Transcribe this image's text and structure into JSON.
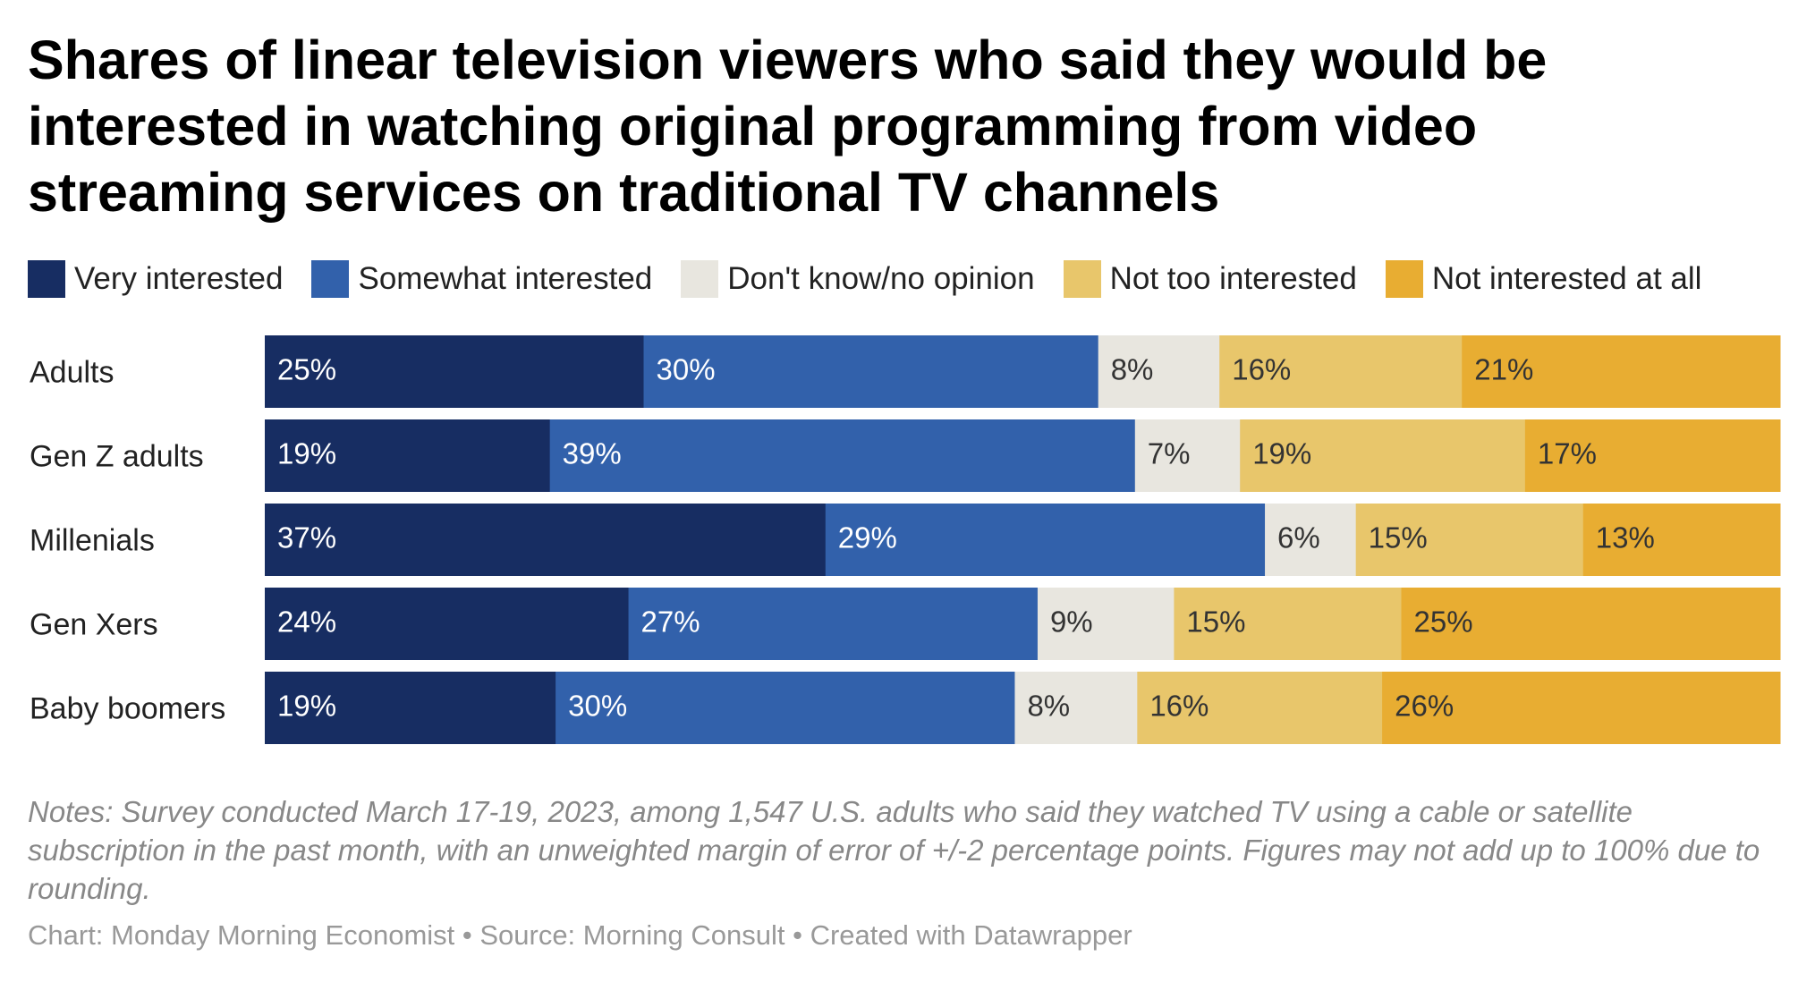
{
  "chart_data": {
    "type": "bar",
    "orientation": "horizontal",
    "stacked": true,
    "title": "Shares of linear television viewers who said they would be interested in watching original programming from video streaming services on traditional TV channels",
    "categories": [
      "Adults",
      "Gen Z adults",
      "Millenials",
      "Gen Xers",
      "Baby boomers"
    ],
    "series": [
      {
        "name": "Very interested",
        "color": "#172d62",
        "label_color": "#ffffff",
        "values": [
          25,
          19,
          37,
          24,
          19
        ],
        "labels": [
          "25%",
          "19%",
          "37%",
          "24%",
          "19%"
        ]
      },
      {
        "name": "Somewhat interested",
        "color": "#3261ab",
        "label_color": "#ffffff",
        "values": [
          30,
          39,
          29,
          27,
          30
        ],
        "labels": [
          "30%",
          "39%",
          "29%",
          "27%",
          "30%"
        ]
      },
      {
        "name": "Don't know/no opinion",
        "color": "#e8e6df",
        "label_color": "#333333",
        "values": [
          8,
          7,
          6,
          9,
          8
        ],
        "labels": [
          "8%",
          "7%",
          "6%",
          "9%",
          "8%"
        ]
      },
      {
        "name": "Not too interested",
        "color": "#e8c66b",
        "label_color": "#333333",
        "values": [
          16,
          19,
          15,
          15,
          16
        ],
        "labels": [
          "16%",
          "19%",
          "15%",
          "15%",
          "16%"
        ]
      },
      {
        "name": "Not interested at all",
        "color": "#e8ad32",
        "label_color": "#333333",
        "values": [
          21,
          17,
          13,
          25,
          26
        ],
        "labels": [
          "21%",
          "17%",
          "13%",
          "25%",
          "26%"
        ]
      }
    ],
    "xlabel": "",
    "ylabel": "",
    "legend": "top",
    "grid": false
  },
  "notes": "Notes: Survey conducted March 17-19, 2023, among 1,547 U.S. adults who said they watched TV using a cable or satellite subscription in the past month, with an unweighted margin of error of +/-2 percentage points. Figures may not add up to 100% due to rounding.",
  "credit": "Chart: Monday Morning Economist • Source: Morning Consult • Created with Datawrapper"
}
